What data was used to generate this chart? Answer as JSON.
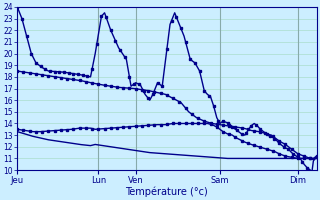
{
  "xlabel": "Température (°c)",
  "background_color": "#cceeff",
  "grid_color": "#aaddcc",
  "line_color": "#00008b",
  "ylim": [
    10,
    24
  ],
  "day_labels": [
    "Jeu",
    "Lun",
    "Ven",
    "Sam",
    "Dim"
  ],
  "line1_pts": {
    "0": 24.0,
    "3": 23.0,
    "6": 21.5,
    "9": 20.0,
    "12": 19.2,
    "16": 18.8,
    "20": 18.5,
    "30": 18.4,
    "40": 18.2,
    "47": 18.0,
    "50": 20.0,
    "54": 23.2,
    "56": 23.5,
    "60": 22.0,
    "65": 20.5,
    "70": 19.5,
    "73": 17.2,
    "76": 17.5,
    "79": 17.3,
    "82": 16.5,
    "85": 16.0,
    "87": 16.5,
    "90": 17.5,
    "93": 17.2,
    "98": 22.5,
    "101": 23.5,
    "104": 22.5,
    "107": 21.5,
    "111": 19.5,
    "114": 19.2,
    "117": 18.5,
    "120": 16.8,
    "122": 16.5,
    "124": 16.3,
    "126": 15.5,
    "128": 14.5,
    "130": 14.0,
    "132": 14.2,
    "134": 14.1,
    "136": 14.0,
    "138": 13.7,
    "140": 13.5,
    "142": 13.3,
    "144": 13.1,
    "146": 13.0,
    "148": 13.4,
    "150": 13.8,
    "152": 14.0,
    "154": 13.8,
    "156": 13.5,
    "158": 13.3,
    "160": 13.1,
    "162": 12.9,
    "164": 12.8,
    "166": 12.6,
    "168": 12.3,
    "170": 12.1,
    "172": 11.9,
    "174": 11.8,
    "176": 11.5,
    "178": 11.3,
    "180": 11.1,
    "182": 10.9,
    "184": 10.5,
    "186": 10.2,
    "188": 10.0,
    "189": 9.8,
    "190": 10.8,
    "192": 11.1
  },
  "line2_pts": {
    "0": 18.5,
    "10": 18.3,
    "20": 18.1,
    "30": 17.9,
    "40": 17.7,
    "47": 17.5,
    "55": 17.3,
    "65": 17.1,
    "75": 17.0,
    "85": 16.8,
    "95": 16.5,
    "105": 15.8,
    "110": 15.0,
    "115": 14.5,
    "120": 14.2,
    "125": 14.0,
    "130": 13.9,
    "135": 13.8,
    "140": 13.7,
    "145": 13.6,
    "148": 13.5,
    "150": 13.4,
    "155": 13.3,
    "158": 13.2,
    "160": 13.1,
    "163": 13.0,
    "165": 12.8,
    "168": 12.5,
    "172": 12.2,
    "176": 11.8,
    "180": 11.4,
    "184": 11.2,
    "188": 11.0,
    "190": 11.0,
    "192": 11.2
  },
  "line3_pts": {
    "0": 13.5,
    "5": 13.4,
    "10": 13.3,
    "15": 13.3,
    "20": 13.35,
    "25": 13.4,
    "30": 13.45,
    "35": 13.5,
    "40": 13.6,
    "47": 13.6,
    "50": 13.5,
    "55": 13.55,
    "60": 13.6,
    "65": 13.65,
    "70": 13.7,
    "75": 13.75,
    "80": 13.8,
    "85": 13.85,
    "90": 13.9,
    "95": 13.9,
    "100": 14.0,
    "105": 14.0,
    "110": 14.0,
    "115": 14.0,
    "120": 14.0,
    "122": 14.0,
    "125": 13.9,
    "128": 13.7,
    "130": 13.5,
    "132": 13.3,
    "135": 13.1,
    "138": 13.0,
    "140": 12.8,
    "143": 12.6,
    "146": 12.4,
    "148": 12.3,
    "150": 12.2,
    "155": 12.0,
    "160": 11.8,
    "165": 11.6,
    "168": 11.4,
    "172": 11.2,
    "176": 11.1,
    "180": 11.0,
    "184": 11.0,
    "188": 11.0,
    "190": 10.9,
    "192": 11.1
  },
  "line4_pts": {
    "0": 13.3,
    "5": 13.1,
    "10": 12.9,
    "15": 12.75,
    "20": 12.6,
    "25": 12.5,
    "30": 12.4,
    "35": 12.3,
    "40": 12.2,
    "47": 12.1,
    "50": 12.2,
    "55": 12.1,
    "60": 12.0,
    "65": 11.9,
    "70": 11.8,
    "75": 11.7,
    "80": 11.6,
    "85": 11.5,
    "90": 11.45,
    "95": 11.4,
    "100": 11.35,
    "105": 11.3,
    "110": 11.25,
    "115": 11.2,
    "120": 11.15,
    "125": 11.1,
    "130": 11.05,
    "135": 11.0,
    "140": 11.0,
    "145": 11.0,
    "148": 11.0,
    "150": 11.0,
    "155": 11.0,
    "160": 11.0,
    "165": 11.0,
    "168": 11.0,
    "172": 11.0,
    "176": 11.0,
    "180": 11.0,
    "184": 11.0,
    "188": 11.0,
    "190": 11.0,
    "192": 11.0
  }
}
